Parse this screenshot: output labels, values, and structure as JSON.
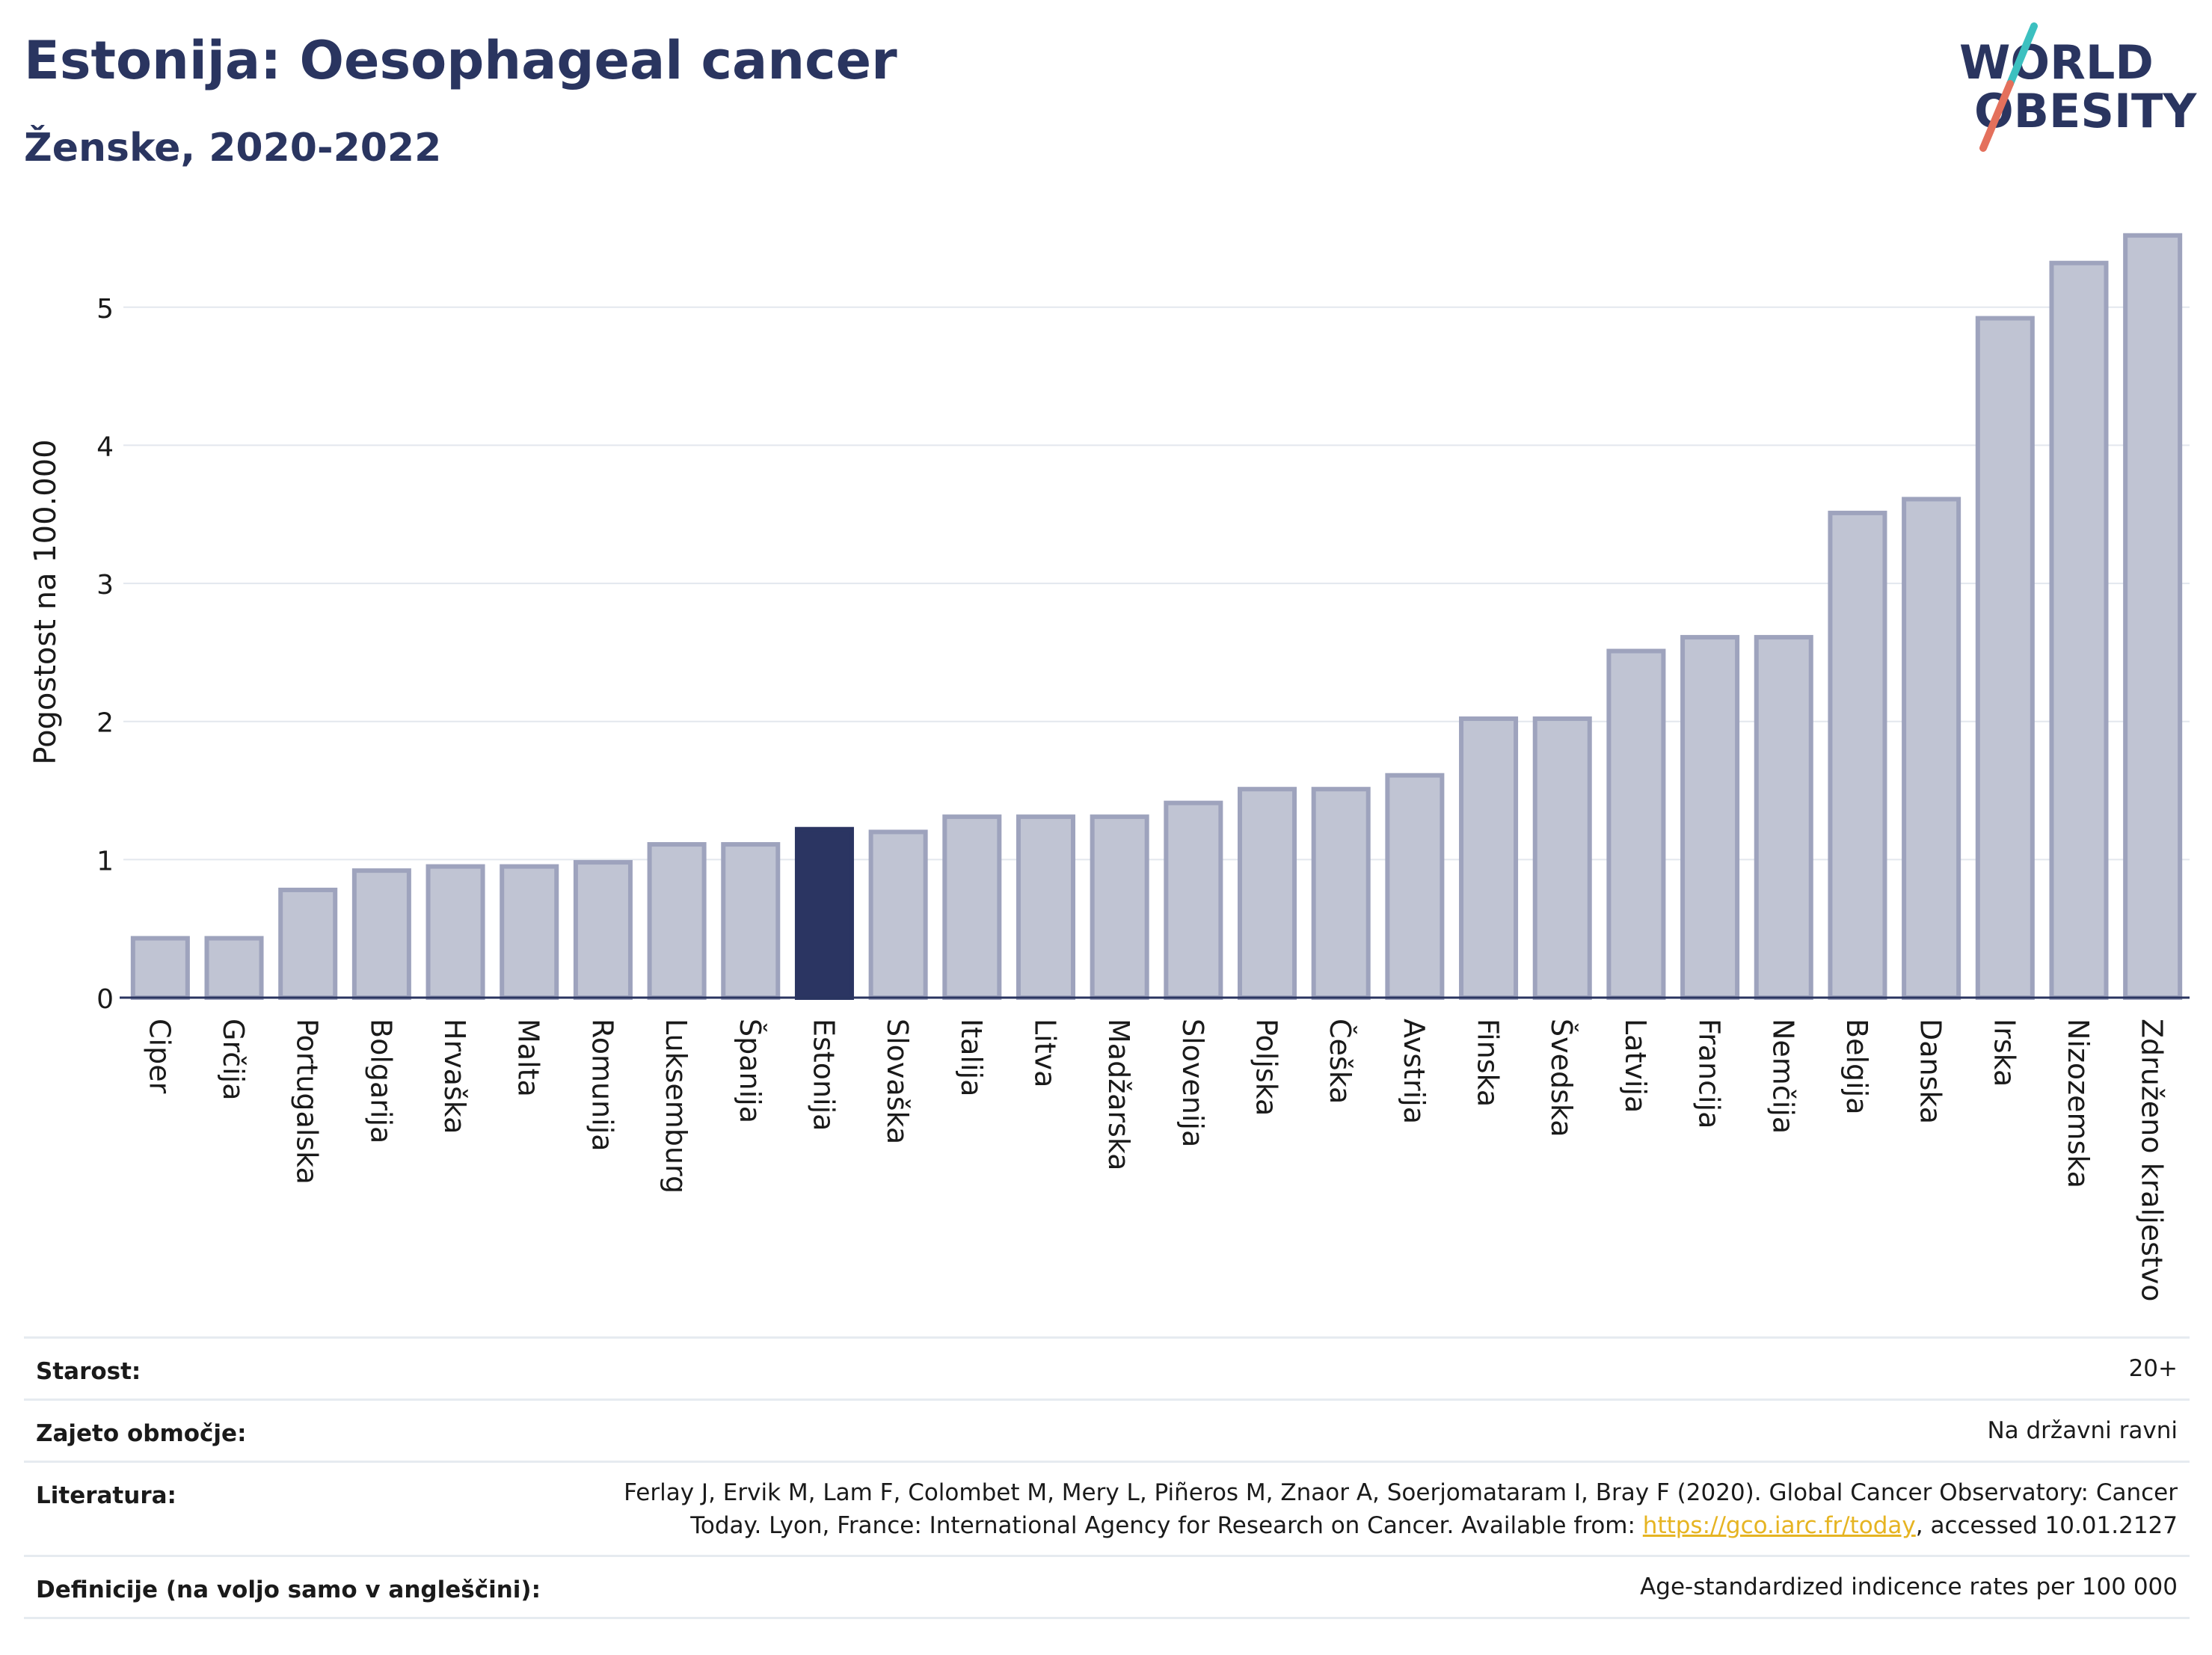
{
  "header": {
    "title": "Estonija: Oesophageal cancer",
    "subtitle": "Ženske, 2020-2022",
    "logo_text_line1": "WORLD",
    "logo_text_line2": "OBESITY"
  },
  "colors": {
    "highlight": "#2b3562",
    "bar_fill": "#c0c4d3",
    "bar_stroke": "#9ea3bd",
    "grid": "#e3e7ee",
    "text": "#2a3560",
    "link": "#e6b422",
    "logo_slash_top": "#3cc0c0",
    "logo_slash_bottom": "#e4705c"
  },
  "chart_data": {
    "type": "bar",
    "ylabel": "Pogostost na 100.000",
    "ylim": [
      0,
      5.6
    ],
    "yticks": [
      "0",
      "1",
      "2",
      "3",
      "4",
      "5"
    ],
    "grid": true,
    "highlight": "Estonija",
    "categories": [
      "Ciper",
      "Grčija",
      "Portugalska",
      "Bolgarija",
      "Hrvaška",
      "Malta",
      "Romunija",
      "Luksemburg",
      "Španija",
      "Estonija",
      "Slovaška",
      "Italija",
      "Litva",
      "Madžarska",
      "Slovenija",
      "Poljska",
      "Češka",
      "Avstrija",
      "Finska",
      "Švedska",
      "Latvija",
      "Francija",
      "Nemčija",
      "Belgija",
      "Danska",
      "Irska",
      "Nizozemska",
      "Združeno kraljestvo"
    ],
    "values": [
      0.43,
      0.43,
      0.78,
      0.92,
      0.95,
      0.95,
      0.98,
      1.11,
      1.11,
      1.22,
      1.2,
      1.31,
      1.31,
      1.31,
      1.41,
      1.51,
      1.51,
      1.61,
      2.02,
      2.02,
      2.51,
      2.61,
      2.61,
      3.51,
      3.61,
      4.92,
      5.32,
      5.52
    ]
  },
  "info": {
    "rows": [
      {
        "label": "Starost:",
        "value": "20+"
      },
      {
        "label": "Zajeto območje:",
        "value": "Na državni ravni"
      },
      {
        "label": "Literatura:",
        "value_line1": "Ferlay J, Ervik M, Lam F, Colombet M, Mery L, Piñeros M, Znaor A, Soerjomataram I, Bray F (2020). Global Cancer Observatory: Cancer",
        "value_line2_pre": "Today. Lyon, France: International Agency for Research on Cancer. Available from: ",
        "link": "https://gco.iarc.fr/today",
        "value_line2_post": ", accessed 10.01.2127"
      },
      {
        "label": "Definicije (na voljo samo v angleščini):",
        "value": "Age-standardized indicence rates per 100 000"
      }
    ]
  }
}
